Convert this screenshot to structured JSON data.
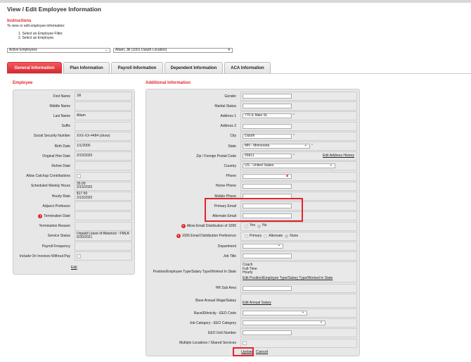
{
  "page": {
    "title": "View / Edit Employee Information"
  },
  "instructions": {
    "heading": "Instructions",
    "text": "To view or edit employee information:",
    "steps": [
      "1. Select an Employee Filter.",
      "2. Select an Employee."
    ]
  },
  "filters": {
    "employee_filter": "Active Employees",
    "employee": "Altam, Jill (1001 Duluth Location)"
  },
  "tabs": [
    "General Information",
    "Plan Information",
    "Payroll Information",
    "Dependent Information",
    "ACA Information"
  ],
  "employee": {
    "heading": "Employee",
    "edit_label": "Edit",
    "fields": [
      {
        "label": "First Name",
        "value": "Jill"
      },
      {
        "label": "Middle Name",
        "value": ""
      },
      {
        "label": "Last Name",
        "value": "Altam"
      },
      {
        "label": "Suffix",
        "value": ""
      },
      {
        "label": "Social Security Number",
        "value": "XXX-XX-4484 (show)"
      },
      {
        "label": "Birth Date",
        "value": "1/1/2000"
      },
      {
        "label": "Original Hire Date",
        "value": "2/15/2020"
      },
      {
        "label": "Rehire Date",
        "value": ""
      },
      {
        "label": "Allow Catchup Contributions",
        "value": "",
        "type": "checkbox"
      },
      {
        "label": "Scheduled Weekly Hours",
        "value": "35.00\n2/15/2020"
      },
      {
        "label": "Hourly Rate",
        "value": "$17.50\n2/15/2020"
      },
      {
        "label": "Adjunct Professor",
        "value": ""
      },
      {
        "label": "Termination Date",
        "value": "",
        "info": true
      },
      {
        "label": "Termination Reason",
        "value": ""
      },
      {
        "label": "Service Status",
        "value": "Unpaid Leave of Absence - FMLA\n6/30/2021"
      },
      {
        "label": "Payroll Frequency",
        "value": ""
      },
      {
        "label": "Include On Invoices Without Pay",
        "value": "",
        "type": "checkbox"
      }
    ]
  },
  "additional": {
    "heading": "Additional Information",
    "update_label": "Update",
    "cancel_label": "Cancel",
    "fields": [
      {
        "label": "Gender",
        "value": "",
        "type": "input"
      },
      {
        "label": "Marital Status",
        "value": "",
        "type": "input"
      },
      {
        "label": "Address 1",
        "value": "770 E Main St.",
        "type": "input",
        "required": true
      },
      {
        "label": "Address 2",
        "value": "",
        "type": "input"
      },
      {
        "label": "City",
        "value": "Duluth",
        "type": "input",
        "required": true
      },
      {
        "label": "State",
        "value": "MN - Minnesota",
        "type": "select",
        "required": true
      },
      {
        "label": "Zip / Foreign Postal Code",
        "value": "55811",
        "type": "input",
        "required": true,
        "link": "Edit Address History"
      },
      {
        "label": "Country",
        "value": "US - United States",
        "type": "select-wide"
      },
      {
        "label": "Phone",
        "value": "",
        "type": "input",
        "phone_icon": true
      },
      {
        "label": "Home Phone",
        "value": "",
        "type": "input"
      },
      {
        "label": "Mobile Phone",
        "value": "",
        "type": "input"
      },
      {
        "label": "Primary Email",
        "value": "",
        "type": "input"
      },
      {
        "label": "Alternate Email",
        "value": "",
        "type": "input"
      },
      {
        "label": "Allow Email Distribution of 1095",
        "type": "radio",
        "info": true,
        "options": [
          "Yes",
          "No"
        ],
        "selected": "No"
      },
      {
        "label": "1095 Email Distribution Preference",
        "type": "radio",
        "info": true,
        "options": [
          "Primary",
          "Alternate",
          "None"
        ],
        "selected": "None"
      },
      {
        "label": "Department",
        "value": "",
        "type": "select-short"
      },
      {
        "label": "Job Title",
        "value": "",
        "type": "input"
      },
      {
        "label": "Position/Employee Type/Salary Type/Worked In State",
        "type": "text",
        "value": "Coach\nFull-Time\nHourly",
        "link": "Edit Position/Employee Type/Salary Type/Worked In State",
        "tall": true
      },
      {
        "label": "HR Sub Area",
        "value": "",
        "type": "input"
      },
      {
        "label": "Base Annual Wage/Salary",
        "type": "text",
        "value": "",
        "link": "Edit Annual Salary",
        "mid": true
      },
      {
        "label": "Race/Ethnicity - EEO Code",
        "value": "",
        "type": "select-med"
      },
      {
        "label": "Job Category - EEO Category",
        "value": "",
        "type": "select-wide2"
      },
      {
        "label": "EEO Unit Number",
        "value": "",
        "type": "input"
      },
      {
        "label": "Multiple Locations / Shared Services",
        "type": "checkbox"
      }
    ]
  },
  "colors": {
    "accent": "#e0262c",
    "panel": "#e7e7e7"
  }
}
